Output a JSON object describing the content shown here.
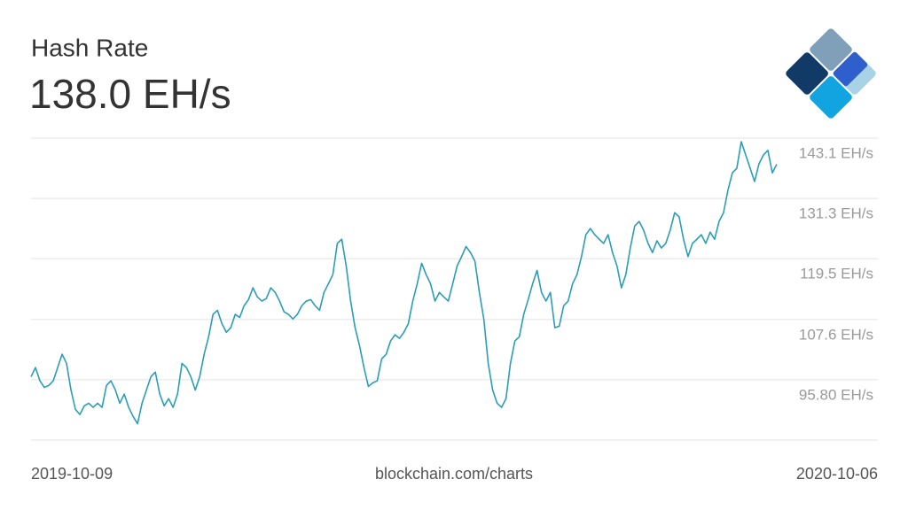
{
  "chart_data": {
    "type": "line",
    "title": "Hash Rate",
    "subtitle": "138.0 EH/s",
    "source": "blockchain.com/charts",
    "color": "#2b9db6",
    "grid": true,
    "categories": [
      "2019-10-09",
      null,
      null,
      null,
      null,
      null,
      null,
      null,
      null,
      null,
      null,
      null,
      null,
      null,
      null,
      null,
      null,
      null,
      null,
      null,
      null,
      null,
      null,
      null,
      null,
      null,
      null,
      null,
      null,
      null,
      null,
      null,
      null,
      null,
      null,
      null,
      null,
      null,
      null,
      null,
      null,
      null,
      null,
      null,
      null,
      null,
      null,
      null,
      null,
      null,
      null,
      null,
      null,
      null,
      null,
      null,
      null,
      null,
      null,
      null,
      null,
      null,
      null,
      null,
      null,
      null,
      null,
      null,
      null,
      null,
      null,
      null,
      null,
      null,
      null,
      null,
      null,
      null,
      null,
      null,
      null,
      null,
      null,
      null,
      null,
      null,
      null,
      null,
      null,
      null,
      null,
      null,
      null,
      null,
      null,
      null,
      null,
      null,
      null,
      null,
      null,
      null,
      null,
      null,
      null,
      null,
      null,
      null,
      null,
      null,
      null,
      null,
      null,
      null,
      null,
      null,
      null,
      null,
      null,
      null,
      null,
      null,
      null,
      null,
      null,
      null,
      null,
      null,
      null,
      null,
      null,
      null,
      null,
      null,
      null,
      null,
      null,
      null,
      null,
      null,
      null,
      null,
      null,
      null,
      null,
      null,
      null,
      null,
      null,
      null,
      null,
      null,
      null,
      null,
      null,
      null,
      null,
      null,
      null,
      null,
      null,
      null,
      null,
      null,
      null,
      null,
      null,
      null,
      "2020-10-06"
    ],
    "values": [
      96.4,
      98.2,
      95.6,
      94.3,
      94.7,
      95.6,
      98.2,
      100.8,
      99.0,
      93.8,
      90.0,
      89.0,
      90.7,
      91.2,
      90.4,
      91.2,
      90.4,
      94.7,
      95.6,
      93.8,
      91.2,
      93.0,
      90.4,
      88.6,
      87.2,
      91.2,
      93.8,
      96.4,
      97.3,
      93.0,
      90.7,
      92.1,
      90.4,
      93.0,
      99.0,
      98.2,
      96.4,
      93.8,
      96.4,
      100.8,
      104.2,
      108.6,
      109.4,
      106.8,
      105.1,
      106.0,
      108.6,
      108.0,
      110.3,
      111.5,
      113.8,
      112.0,
      111.2,
      111.7,
      113.8,
      112.9,
      111.2,
      109.1,
      108.6,
      107.7,
      108.6,
      110.3,
      111.2,
      111.5,
      110.3,
      109.4,
      112.9,
      114.6,
      116.4,
      122.5,
      123.3,
      118.1,
      111.2,
      106.0,
      102.5,
      98.2,
      94.5,
      95.2,
      95.6,
      99.9,
      100.8,
      103.4,
      104.6,
      103.9,
      105.1,
      106.8,
      111.2,
      114.6,
      118.6,
      116.4,
      114.6,
      111.2,
      112.9,
      112.0,
      111.2,
      114.6,
      118.1,
      119.9,
      121.9,
      120.7,
      119.0,
      112.9,
      107.7,
      99.0,
      93.8,
      91.2,
      90.4,
      92.1,
      99.0,
      103.4,
      104.2,
      108.6,
      111.5,
      114.6,
      117.2,
      112.9,
      111.2,
      112.9,
      106.0,
      106.3,
      110.3,
      111.2,
      114.6,
      116.4,
      119.9,
      124.2,
      125.4,
      124.2,
      123.3,
      122.5,
      124.2,
      120.7,
      118.1,
      113.8,
      116.4,
      121.6,
      125.9,
      126.8,
      125.1,
      122.5,
      120.7,
      123.0,
      121.6,
      122.5,
      125.1,
      128.5,
      127.7,
      123.3,
      119.9,
      122.5,
      123.3,
      124.2,
      122.5,
      124.7,
      123.3,
      126.8,
      128.5,
      132.9,
      136.3,
      137.2,
      142.4,
      139.8,
      137.2,
      134.6,
      138.1,
      139.8,
      140.7,
      136.3,
      138.0
    ],
    "ylim": [
      84.0,
      143.1
    ],
    "yticks": [
      {
        "value": 143.1,
        "label": "143.1 EH/s"
      },
      {
        "value": 131.3,
        "label": "131.3 EH/s"
      },
      {
        "value": 119.5,
        "label": "119.5 EH/s"
      },
      {
        "value": 107.6,
        "label": "107.6 EH/s"
      },
      {
        "value": 95.8,
        "label": "95.80 EH/s"
      }
    ]
  }
}
